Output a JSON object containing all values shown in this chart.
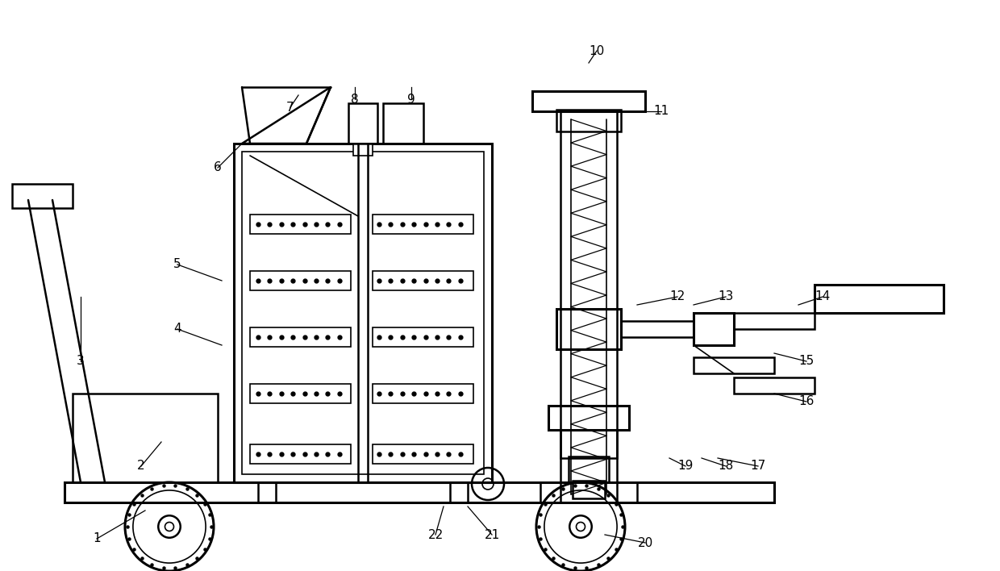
{
  "bg_color": "#ffffff",
  "line_color": "#000000",
  "fig_width": 12.4,
  "fig_height": 7.08
}
